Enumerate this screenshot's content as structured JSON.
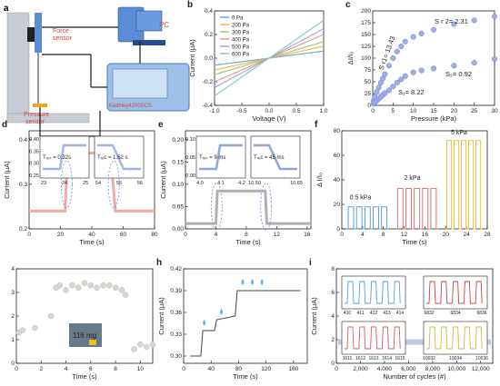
{
  "colors": {
    "axis": "#222222",
    "setup_bg": "#c8ccd4",
    "setup_stand": "#b8bcc6",
    "setup_wire": "#1a1a1a",
    "pc_blue": "#5b8cd6",
    "sensor_red": "#d04040",
    "sensor_yellow": "#e8a820",
    "keithley_blue": "#4a7ab8",
    "dot_gray": "#c8c8c8",
    "dot_blue": "#a0aee8",
    "sample_bg": "#6a7a8a"
  },
  "panel_a": {
    "label": "a",
    "force_sensor": "Force\nsensor",
    "pc": "PC",
    "pressure_sensor": "Pressure\nsensor",
    "instrument": "Keithley4200SCS"
  },
  "chart_data": [
    {
      "panel": "b",
      "type": "line",
      "xlabel": "Voltage (V)",
      "ylabel": "Current (μA)",
      "xlim": [
        -1.0,
        1.0
      ],
      "ylim": [
        -0.4,
        0.4
      ],
      "xticks": [
        "-1.0",
        "-0.5",
        "0.0",
        "0.5",
        "1.0"
      ],
      "yticks": [
        "-0.4",
        "-0.2",
        "0.0",
        "0.2",
        "0.4"
      ],
      "legend_position": "top-left",
      "series": [
        {
          "name": "0  Pa",
          "color": "#6aa8d8",
          "x": [
            -1.0,
            1.0
          ],
          "y": [
            -0.06,
            0.06
          ]
        },
        {
          "name": "200 Pa",
          "color": "#f4b860",
          "x": [
            -1.0,
            1.0
          ],
          "y": [
            -0.1,
            0.1
          ]
        },
        {
          "name": "300 Pa",
          "color": "#a0c878",
          "x": [
            -1.0,
            1.0
          ],
          "y": [
            -0.14,
            0.14
          ]
        },
        {
          "name": "400 Pa",
          "color": "#e89890",
          "x": [
            -1.0,
            1.0
          ],
          "y": [
            -0.2,
            0.2
          ]
        },
        {
          "name": "500 Pa",
          "color": "#b0a0d8",
          "x": [
            -1.0,
            1.0
          ],
          "y": [
            -0.25,
            0.25
          ]
        },
        {
          "name": "600 Pa",
          "color": "#7ed0c0",
          "x": [
            -1.0,
            1.0
          ],
          "y": [
            -0.32,
            0.32
          ]
        }
      ]
    },
    {
      "panel": "c",
      "type": "scatter",
      "xlabel": "Pressure (kPa)",
      "ylabel": "ΔI/I₀",
      "xlim": [
        0,
        30
      ],
      "ylim": [
        0,
        200
      ],
      "xticks": [
        "0",
        "5",
        "10",
        "15",
        "20",
        "25",
        "30"
      ],
      "yticks": [
        "0",
        "25",
        "50",
        "75",
        "100",
        "125",
        "150",
        "175",
        "200"
      ],
      "annotations": [
        "S r 2= 2.31",
        "S r1= 13.43",
        "S₁= 8.22",
        "S₂= 0.92"
      ],
      "series": [
        {
          "name": "upper",
          "x": [
            0.2,
            0.5,
            1,
            1.5,
            2,
            2.5,
            3,
            4,
            5,
            6,
            7,
            8,
            10,
            12,
            15,
            20,
            25,
            30
          ],
          "y": [
            10,
            18,
            28,
            38,
            48,
            57,
            66,
            84,
            100,
            114,
            125,
            135,
            145,
            152,
            160,
            172,
            180,
            188
          ]
        },
        {
          "name": "lower",
          "x": [
            0.2,
            0.5,
            1,
            1.5,
            2,
            2.5,
            3,
            4,
            5,
            6,
            7,
            8,
            10,
            12,
            15,
            20,
            25,
            30
          ],
          "y": [
            3,
            6,
            10,
            14,
            18,
            22,
            26,
            32,
            40,
            48,
            55,
            62,
            70,
            74,
            78,
            84,
            90,
            98
          ]
        }
      ]
    },
    {
      "panel": "d",
      "type": "line",
      "xlabel": "Time (s)",
      "ylabel": "Current (μA)",
      "xlim": [
        0,
        80
      ],
      "ylim": [
        0.2,
        0.42
      ],
      "xticks": [
        "0",
        "20",
        "40",
        "60",
        "80"
      ],
      "yticks": [
        "0.2",
        "0.3",
        "0.4"
      ],
      "series": [
        {
          "name": "current",
          "x": [
            0,
            23,
            24.5,
            52,
            55,
            80
          ],
          "y": [
            0.24,
            0.24,
            0.37,
            0.37,
            0.24,
            0.24
          ]
        }
      ],
      "insets": [
        {
          "label": "Tᵣₑₛ = 0.32s",
          "xticks": [
            "23",
            "24",
            "25"
          ],
          "yticks": [
            "0.40",
            "0.35",
            "0.30",
            "0.25"
          ]
        },
        {
          "label": "Tᵣₑc = 1.52 s",
          "xticks": [
            "54",
            "55",
            "56"
          ]
        }
      ]
    },
    {
      "panel": "e",
      "type": "line",
      "xlabel": "Time (s)",
      "ylabel": "Current (μA)",
      "xlim": [
        0,
        16.5
      ],
      "ylim": [
        0.0,
        0.22
      ],
      "xticks": [
        "0",
        "4",
        "8",
        "12",
        "16"
      ],
      "yticks": [
        "0.00",
        "0.05",
        "0.10",
        "0.15",
        "0.20"
      ],
      "series": [
        {
          "name": "current",
          "x": [
            0,
            4,
            4.2,
            10.5,
            10.7,
            16.5
          ],
          "y": [
            0.012,
            0.012,
            0.085,
            0.085,
            0.012,
            0.012
          ]
        }
      ],
      "insets": [
        {
          "label": "Tᵣₑₛ = 9 ms",
          "xticks": [
            "4.0",
            "4.1",
            "4.2"
          ],
          "yticks": [
            "0.10",
            "0.05",
            "0.00"
          ]
        },
        {
          "label": "Tᵣₑc = 45 ms",
          "xticks": [
            "10.50",
            "10.65"
          ]
        }
      ]
    },
    {
      "panel": "f",
      "type": "line",
      "xlabel": "Time (s)",
      "ylabel": "Δ I/I₀",
      "xlim": [
        0,
        28
      ],
      "ylim": [
        0,
        80
      ],
      "xticks": [
        "0",
        "4",
        "8",
        "12",
        "16",
        "20",
        "24",
        "28"
      ],
      "yticks": [
        "0",
        "20",
        "40",
        "60",
        "80"
      ],
      "annotations": [
        "0.5 kPa",
        "2 kPa",
        "5 kPa"
      ],
      "series": [
        {
          "name": "0.5 kPa",
          "color": "#5aa0d8",
          "pulses": 5,
          "t_start": 1,
          "t_end": 9,
          "level": 18
        },
        {
          "name": "2 kPa",
          "color": "#e07870",
          "pulses": 5,
          "t_start": 10.5,
          "t_end": 18.5,
          "level": 33
        },
        {
          "name": "5 kPa",
          "color": "#e8c040",
          "pulses": 5,
          "t_start": 20,
          "t_end": 27,
          "level": 72
        }
      ]
    },
    {
      "panel": "g",
      "type": "scatter",
      "xlabel": "Time (s)",
      "ylabel": "Current (μA)",
      "xlim": [
        0,
        11
      ],
      "ylim": [
        0,
        4
      ],
      "xticks": [
        "0",
        "2",
        "4",
        "6",
        "8",
        "10"
      ],
      "yticks": [
        "0",
        "1",
        "2",
        "3",
        "4"
      ],
      "annotations": [
        "116 mg"
      ],
      "series": [
        {
          "name": "current",
          "x": [
            0.2,
            0.5,
            1.5,
            2.8,
            3.2,
            3.5,
            4,
            4.5,
            5,
            5.5,
            6,
            6.5,
            7,
            7.5,
            8,
            8.5,
            8.8,
            9.5,
            10,
            10.5,
            11
          ],
          "y": [
            1.3,
            1.4,
            1.5,
            2.0,
            3.2,
            3.3,
            3.1,
            3.3,
            3.2,
            3.4,
            3.3,
            3.2,
            3.3,
            3.3,
            3.2,
            3.1,
            2.9,
            0.6,
            0.8,
            0.7,
            0.8
          ]
        }
      ]
    },
    {
      "panel": "h",
      "type": "line",
      "xlabel": "Time (s)",
      "ylabel": "Current (μA)",
      "xlim": [
        0,
        180
      ],
      "ylim": [
        0.29,
        0.42
      ],
      "xticks": [
        "0",
        "40",
        "80",
        "120",
        "160"
      ],
      "yticks": [
        "0.30",
        "0.33",
        "0.36",
        "0.39",
        "0.42"
      ],
      "series": [
        {
          "name": "current",
          "x": [
            10,
            25,
            28,
            45,
            48,
            75,
            78,
            170
          ],
          "y": [
            0.3,
            0.3,
            0.335,
            0.335,
            0.35,
            0.355,
            0.39,
            0.39
          ]
        }
      ]
    },
    {
      "panel": "i",
      "type": "line",
      "xlabel": "Number of cycles (#)",
      "ylabel": "Current (μA)",
      "xlim": [
        0,
        13000
      ],
      "ylim": [
        0,
        8
      ],
      "xticks": [
        "0",
        "2,000",
        "4,000",
        "6,000",
        "8,000",
        "10,000",
        "12,000"
      ],
      "yticks": [
        "0",
        "2",
        "4",
        "6",
        "8"
      ],
      "insets": [
        {
          "color": "#5aa0d8",
          "xticks": [
            "410",
            "411",
            "412",
            "413",
            "414"
          ]
        },
        {
          "color": "#d04040",
          "xticks": [
            "6832",
            "6834",
            "6836"
          ]
        },
        {
          "color": "#d06060",
          "xticks": [
            "1611",
            "1612",
            "1613",
            "1614",
            "1615"
          ]
        },
        {
          "color": "#c8c040",
          "xticks": [
            "10032",
            "10034",
            "10036"
          ]
        }
      ]
    }
  ]
}
